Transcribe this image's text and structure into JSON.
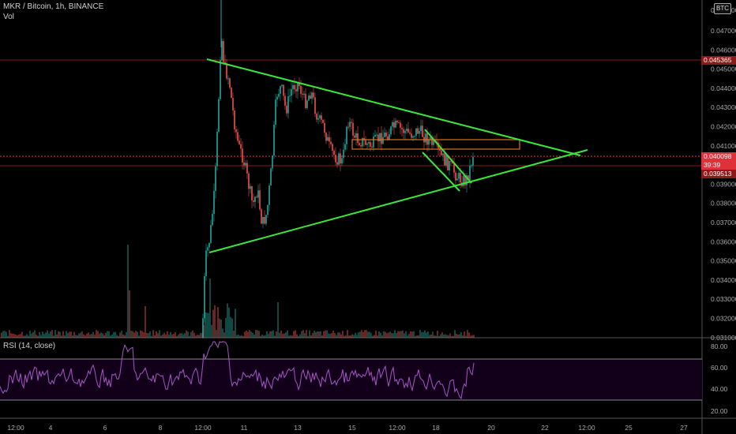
{
  "header": {
    "symbol_line": "MKR / Bitcoin, 1h, BINANCE",
    "volume_label": "Vol",
    "currency_badge": "BTC"
  },
  "rsi": {
    "label": "RSI (14, close)",
    "axis_ticks": [
      "80.00",
      "60.00",
      "40.00",
      "20.00"
    ],
    "upper_band": 70,
    "lower_band": 30,
    "line_color": "#a855c8"
  },
  "price_axis": {
    "ticks": [
      "0.047000",
      "0.046000",
      "0.045000",
      "0.044000",
      "0.043000",
      "0.042000",
      "0.041000",
      "0.040000",
      "0.039000",
      "0.038000",
      "0.037000",
      "0.036000",
      "0.035000",
      "0.034000",
      "0.033000",
      "0.032000",
      "0.031000"
    ],
    "top_partial_tick": "0.048000",
    "markers": [
      {
        "name": "resistance-price",
        "value": "0.045365",
        "color": "#8b1a1a"
      },
      {
        "name": "last-price",
        "value": "0.040098",
        "color": "#e0303a"
      },
      {
        "name": "countdown",
        "value": "39:39",
        "color": "#e0303a"
      },
      {
        "name": "support-price",
        "value": "0.039513",
        "color": "#8b1a1a"
      }
    ]
  },
  "time_axis": {
    "ticks": [
      "12:00",
      "4",
      "6",
      "8",
      "12:00",
      "11",
      "13",
      "15",
      "12:00",
      "18",
      "20",
      "22",
      "12:00",
      "25",
      "27"
    ]
  },
  "colors": {
    "up": "#26a69a",
    "down": "#ef5350",
    "trendline": "#39e639",
    "box": "#e07020"
  }
}
